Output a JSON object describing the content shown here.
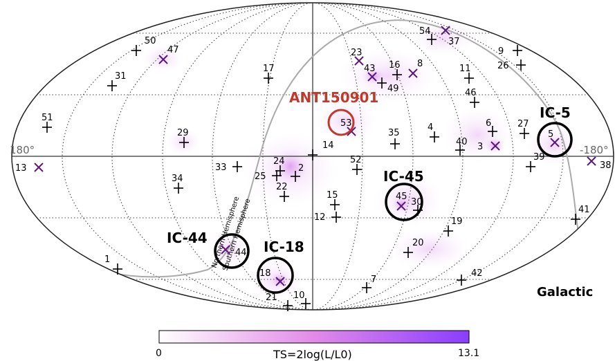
{
  "frame_label": "Galactic",
  "lon_left_label": "180°",
  "lon_right_label": "-180°",
  "hemisphere_north": "Northern Hemisphere",
  "hemisphere_south": "Southern Hemisphere",
  "colorbar": {
    "min_label": "0",
    "max_label": "13.1",
    "title": "TS=2log(L/L0)",
    "color_low": "#ffffff",
    "color_high": "#8a3dff"
  },
  "annotations": [
    {
      "label": "ANT150901",
      "color": "#c0392b"
    },
    {
      "label": "IC-5"
    },
    {
      "label": "IC-45"
    },
    {
      "label": "IC-44"
    },
    {
      "label": "IC-18"
    }
  ],
  "sources": [
    {
      "id": "1",
      "marker": "plus"
    },
    {
      "id": "2",
      "marker": "plus"
    },
    {
      "id": "3",
      "marker": "cross"
    },
    {
      "id": "4",
      "marker": "plus"
    },
    {
      "id": "5",
      "marker": "cross"
    },
    {
      "id": "6",
      "marker": "plus"
    },
    {
      "id": "7",
      "marker": "plus"
    },
    {
      "id": "8",
      "marker": "cross"
    },
    {
      "id": "9",
      "marker": "plus"
    },
    {
      "id": "10",
      "marker": "plus"
    },
    {
      "id": "11",
      "marker": "plus"
    },
    {
      "id": "12",
      "marker": "plus"
    },
    {
      "id": "13",
      "marker": "cross"
    },
    {
      "id": "14",
      "marker": "plus"
    },
    {
      "id": "15",
      "marker": "plus"
    },
    {
      "id": "16",
      "marker": "plus"
    },
    {
      "id": "17",
      "marker": "plus"
    },
    {
      "id": "18",
      "marker": "cross"
    },
    {
      "id": "19",
      "marker": "plus"
    },
    {
      "id": "20",
      "marker": "plus"
    },
    {
      "id": "21",
      "marker": "plus"
    },
    {
      "id": "22",
      "marker": "plus"
    },
    {
      "id": "23",
      "marker": "cross"
    },
    {
      "id": "24",
      "marker": "plus"
    },
    {
      "id": "25",
      "marker": "plus"
    },
    {
      "id": "26",
      "marker": "plus"
    },
    {
      "id": "27",
      "marker": "plus"
    },
    {
      "id": "29",
      "marker": "plus"
    },
    {
      "id": "30",
      "marker": "plus"
    },
    {
      "id": "31",
      "marker": "plus"
    },
    {
      "id": "33",
      "marker": "plus"
    },
    {
      "id": "34",
      "marker": "plus"
    },
    {
      "id": "35",
      "marker": "plus"
    },
    {
      "id": "37",
      "marker": "cross"
    },
    {
      "id": "38",
      "marker": "cross"
    },
    {
      "id": "39",
      "marker": "plus"
    },
    {
      "id": "40",
      "marker": "plus"
    },
    {
      "id": "41",
      "marker": "plus"
    },
    {
      "id": "42",
      "marker": "plus"
    },
    {
      "id": "43",
      "marker": "cross"
    },
    {
      "id": "44",
      "marker": "cross"
    },
    {
      "id": "45",
      "marker": "cross"
    },
    {
      "id": "46",
      "marker": "plus"
    },
    {
      "id": "47",
      "marker": "cross"
    },
    {
      "id": "49",
      "marker": "plus"
    },
    {
      "id": "50",
      "marker": "plus"
    },
    {
      "id": "51",
      "marker": "plus"
    },
    {
      "id": "52",
      "marker": "plus"
    },
    {
      "id": "53",
      "marker": "cross"
    },
    {
      "id": "54",
      "marker": "plus"
    }
  ]
}
